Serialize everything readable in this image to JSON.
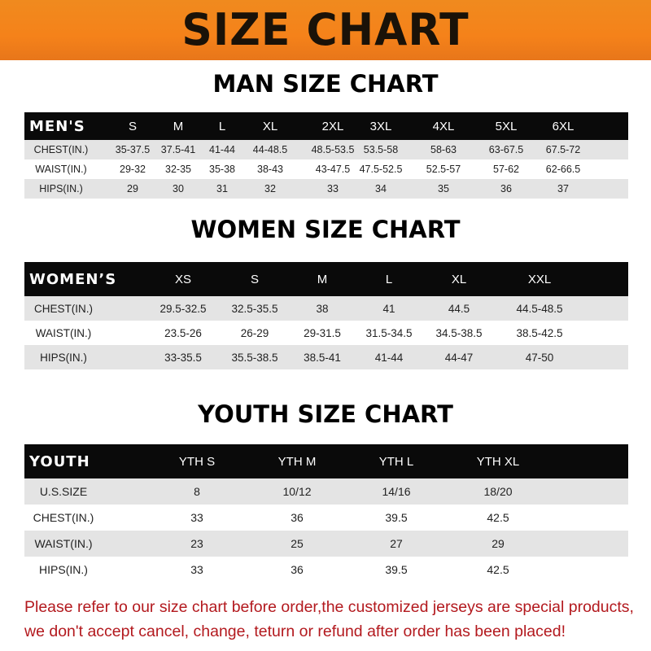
{
  "banner": {
    "title": "SIZE CHART"
  },
  "colors": {
    "banner": "#f5821a",
    "header_row": "#0a0a0a",
    "stripe": "#e4e4e4",
    "note": "#b3191e"
  },
  "sections": [
    {
      "title": "MAN SIZE CHART",
      "header": "MEN'S",
      "columns": [
        "S",
        "M",
        "L",
        "XL",
        "2XL",
        "3XL",
        "4XL",
        "5XL",
        "6XL"
      ],
      "rows": [
        {
          "label": "CHEST(IN.)",
          "values": [
            "35-37.5",
            "37.5-41",
            "41-44",
            "44-48.5",
            "48.5-53.5",
            "53.5-58",
            "58-63",
            "63-67.5",
            "67.5-72"
          ]
        },
        {
          "label": "WAIST(IN.)",
          "values": [
            "29-32",
            "32-35",
            "35-38",
            "38-43",
            "43-47.5",
            "47.5-52.5",
            "52.5-57",
            "57-62",
            "62-66.5"
          ]
        },
        {
          "label": "HIPS(IN.)",
          "values": [
            "29",
            "30",
            "31",
            "32",
            "33",
            "34",
            "35",
            "36",
            "37"
          ]
        }
      ]
    },
    {
      "title": "WOMEN SIZE CHART",
      "header": "WOMEN’S",
      "columns": [
        "XS",
        "S",
        "M",
        "L",
        "XL",
        "XXL"
      ],
      "rows": [
        {
          "label": "CHEST(IN.)",
          "values": [
            "29.5-32.5",
            "32.5-35.5",
            "38",
            "41",
            "44.5",
            "44.5-48.5"
          ]
        },
        {
          "label": "WAIST(IN.)",
          "values": [
            "23.5-26",
            "26-29",
            "29-31.5",
            "31.5-34.5",
            "34.5-38.5",
            "38.5-42.5"
          ]
        },
        {
          "label": "HIPS(IN.)",
          "values": [
            "33-35.5",
            "35.5-38.5",
            "38.5-41",
            "41-44",
            "44-47",
            "47-50"
          ]
        }
      ]
    },
    {
      "title": "YOUTH SIZE CHART",
      "header": "YOUTH",
      "columns": [
        "YTH S",
        "YTH M",
        "YTH L",
        "YTH XL"
      ],
      "rows": [
        {
          "label": "U.S.SIZE",
          "values": [
            "8",
            "10/12",
            "14/16",
            "18/20"
          ]
        },
        {
          "label": "CHEST(IN.)",
          "values": [
            "33",
            "36",
            "39.5",
            "42.5"
          ]
        },
        {
          "label": "WAIST(IN.)",
          "values": [
            "23",
            "25",
            "27",
            "29"
          ]
        },
        {
          "label": "HIPS(IN.)",
          "values": [
            "33",
            "36",
            "39.5",
            "42.5"
          ]
        }
      ]
    }
  ],
  "note": {
    "line1": "Please refer to our size chart before order,the customized jerseys are special products,",
    "line2": "we don't accept cancel, change, teturn or refund after order has been placed!"
  }
}
